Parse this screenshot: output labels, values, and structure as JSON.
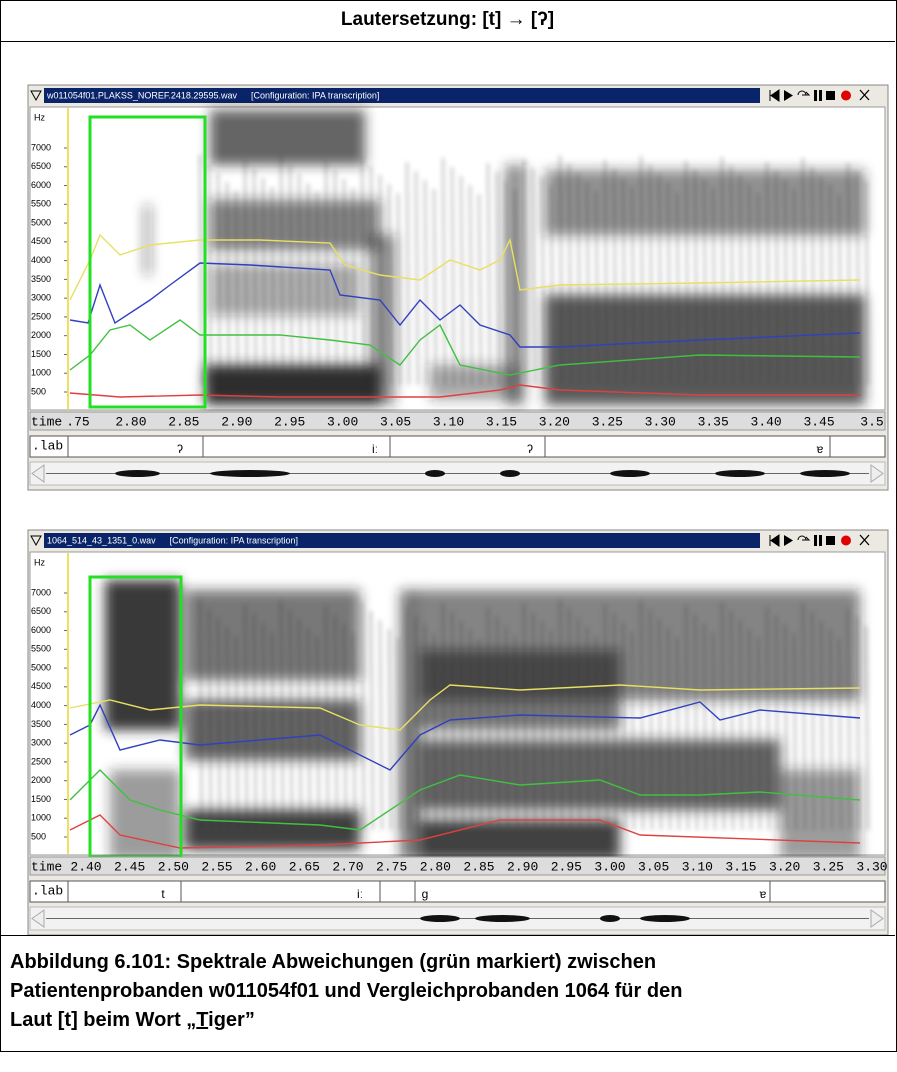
{
  "title": "Lautersetzung: [t] → [ʔ]",
  "panels": [
    {
      "file": "w011054f01.PLAKSS_NOREF.2418.29595.wav",
      "config": "[Configuration: IPA transcription]",
      "unit": "Hz",
      "y_labels": [
        "7000",
        "6500",
        "6000",
        "5500",
        "5000",
        "4500",
        "4000",
        "3500",
        "3000",
        "2500",
        "2000",
        "1500",
        "1000",
        "500"
      ],
      "time_label": "time",
      "time_ticks": [
        ".75",
        "2.80",
        "2.85",
        "2.90",
        "2.95",
        "3.00",
        "3.05",
        "3.10",
        "3.15",
        "3.20",
        "3.25",
        "3.30",
        "3.35",
        "3.40",
        "3.45",
        "3.5"
      ],
      "tier_label": ".lab",
      "segments": [
        "ʔ",
        "iː",
        "ʔ",
        "ɐ"
      ]
    },
    {
      "file": "1064_514_43_1351_0.wav",
      "config": "[Configuration: IPA transcription]",
      "unit": "Hz",
      "y_labels": [
        "7000",
        "6500",
        "6000",
        "5500",
        "5000",
        "4500",
        "4000",
        "3500",
        "3000",
        "2500",
        "2000",
        "1500",
        "1000",
        "500"
      ],
      "time_label": "time",
      "time_ticks": [
        "2.40",
        "2.45",
        "2.50",
        "2.55",
        "2.60",
        "2.65",
        "2.70",
        "2.75",
        "2.80",
        "2.85",
        "2.90",
        "2.95",
        "3.00",
        "3.05",
        "3.10",
        "3.15",
        "3.20",
        "3.25",
        "3.30"
      ],
      "tier_label": ".lab",
      "segments": [
        "t",
        "iː",
        "g",
        "ɐ"
      ]
    }
  ],
  "caption": {
    "lines": [
      "Abbildung 6.101: Spektrale Abweichungen (grün markiert) zwischen",
      "Patientenprobanden w011054f01 und Vergleichprobanden 1064 für den"
    ],
    "last_start": "Laut [t] beim Wort „",
    "underlined": "T",
    "last_end": "iger”"
  }
}
